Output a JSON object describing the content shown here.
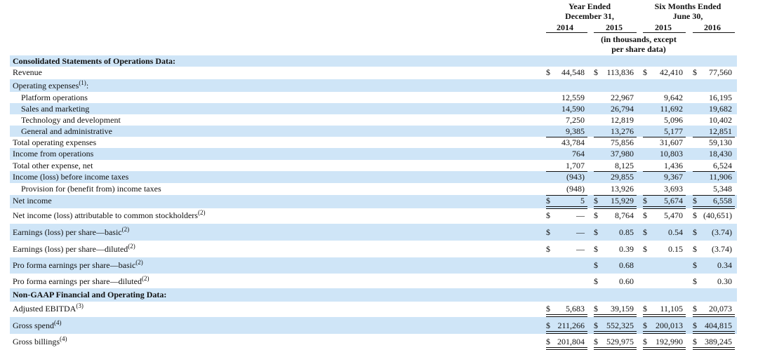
{
  "header": {
    "groups": [
      [
        "Year Ended",
        "December 31,"
      ],
      [
        "Six Months Ended",
        "June 30,"
      ]
    ],
    "years": [
      "2014",
      "2015",
      "2015",
      "2016"
    ],
    "unit_note": [
      "(in thousands, except",
      "per share data)"
    ]
  },
  "table": {
    "rows": [
      {
        "label": "Consolidated Statements of Operations Data:"
      },
      {
        "label": "Revenue",
        "cells": [
          [
            "$",
            "44,548"
          ],
          [
            "$",
            "113,836"
          ],
          [
            "$",
            "42,410"
          ],
          [
            "$",
            "77,560"
          ]
        ]
      },
      {
        "label": "Operating expenses",
        "note": "(1)",
        "tail": ":"
      },
      {
        "label": "Platform operations",
        "cells": [
          [
            null,
            "12,559"
          ],
          [
            null,
            "22,967"
          ],
          [
            null,
            "9,642"
          ],
          [
            null,
            "16,195"
          ]
        ]
      },
      {
        "label": "Sales and marketing",
        "cells": [
          [
            null,
            "14,590"
          ],
          [
            null,
            "26,794"
          ],
          [
            null,
            "11,692"
          ],
          [
            null,
            "19,682"
          ]
        ]
      },
      {
        "label": "Technology and development",
        "cells": [
          [
            null,
            "7,250"
          ],
          [
            null,
            "12,819"
          ],
          [
            null,
            "5,096"
          ],
          [
            null,
            "10,402"
          ]
        ]
      },
      {
        "label": "General and administrative",
        "cells": [
          [
            null,
            "9,385"
          ],
          [
            null,
            "13,276"
          ],
          [
            null,
            "5,177"
          ],
          [
            null,
            "12,851"
          ]
        ]
      },
      {
        "label": "Total operating expenses",
        "cells": [
          [
            null,
            "43,784"
          ],
          [
            null,
            "75,856"
          ],
          [
            null,
            "31,607"
          ],
          [
            null,
            "59,130"
          ]
        ]
      },
      {
        "label": "Income from operations",
        "cells": [
          [
            null,
            "764"
          ],
          [
            null,
            "37,980"
          ],
          [
            null,
            "10,803"
          ],
          [
            null,
            "18,430"
          ]
        ]
      },
      {
        "label": "Total other expense, net",
        "cells": [
          [
            null,
            "1,707"
          ],
          [
            null,
            "8,125"
          ],
          [
            null,
            "1,436"
          ],
          [
            null,
            "6,524"
          ]
        ]
      },
      {
        "label": "Income (loss) before income taxes",
        "cells": [
          [
            null,
            "(943)"
          ],
          [
            null,
            "29,855"
          ],
          [
            null,
            "9,367"
          ],
          [
            null,
            "11,906"
          ]
        ]
      },
      {
        "label": "Provision for (benefit from) income taxes",
        "cells": [
          [
            null,
            "(948)"
          ],
          [
            null,
            "13,926"
          ],
          [
            null,
            "3,693"
          ],
          [
            null,
            "5,348"
          ]
        ]
      },
      {
        "label": "Net income",
        "cells": [
          [
            "$",
            "5"
          ],
          [
            "$",
            "15,929"
          ],
          [
            "$",
            "5,674"
          ],
          [
            "$",
            "6,558"
          ]
        ]
      },
      {
        "label": "Net income (loss) attributable to common stockholders",
        "note": "(2)",
        "cells": [
          [
            "$",
            "—"
          ],
          [
            "$",
            "8,764"
          ],
          [
            "$",
            "5,470"
          ],
          [
            "$",
            "(40,651)"
          ]
        ]
      },
      {
        "label": "Earnings (loss) per share—basic",
        "note": "(2)",
        "cells": [
          [
            "$",
            "—"
          ],
          [
            "$",
            "0.85"
          ],
          [
            "$",
            "0.54"
          ],
          [
            "$",
            "(3.74)"
          ]
        ]
      },
      {
        "label": "Earnings (loss) per share—diluted",
        "note": "(2)",
        "cells": [
          [
            "$",
            "—"
          ],
          [
            "$",
            "0.39"
          ],
          [
            "$",
            "0.15"
          ],
          [
            "$",
            "(3.74)"
          ]
        ]
      },
      {
        "label": "Pro forma earnings per share—basic",
        "note": "(2)",
        "cells": [
          null,
          [
            "$",
            "0.68"
          ],
          null,
          [
            "$",
            "0.34"
          ]
        ]
      },
      {
        "label": "Pro forma earnings per share—diluted",
        "note": "(2)",
        "cells": [
          null,
          [
            "$",
            "0.60"
          ],
          null,
          [
            "$",
            "0.30"
          ]
        ]
      },
      {
        "label": "Non-GAAP Financial and Operating Data:"
      },
      {
        "label": "Adjusted EBITDA",
        "note": "(3)",
        "cells": [
          [
            "$",
            "5,683"
          ],
          [
            "$",
            "39,159"
          ],
          [
            "$",
            "11,105"
          ],
          [
            "$",
            "20,073"
          ]
        ]
      },
      {
        "label": "Gross spend",
        "note": "(4)",
        "cells": [
          [
            "$",
            "211,266"
          ],
          [
            "$",
            "552,325"
          ],
          [
            "$",
            "200,013"
          ],
          [
            "$",
            "404,815"
          ]
        ]
      },
      {
        "label": "Gross billings",
        "note": "(4)",
        "cells": [
          [
            "$",
            "201,804"
          ],
          [
            "$",
            "529,975"
          ],
          [
            "$",
            "192,990"
          ],
          [
            "$",
            "389,245"
          ]
        ]
      }
    ]
  }
}
